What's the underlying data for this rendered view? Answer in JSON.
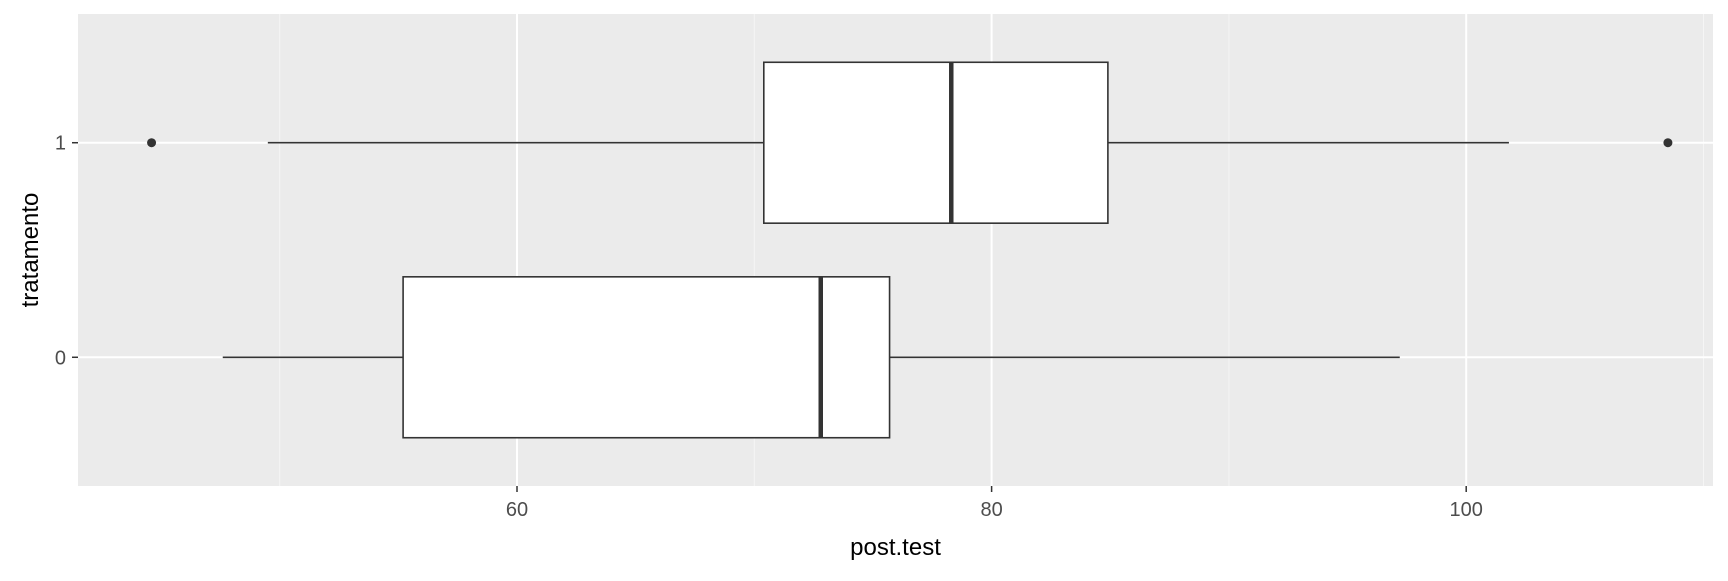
{
  "chart_data": {
    "type": "boxplot",
    "orientation": "horizontal",
    "xlabel": "post.test",
    "ylabel": "tratamento",
    "xlim": [
      41.5,
      110.4
    ],
    "x_ticks": [
      60,
      80,
      100
    ],
    "x_minor_ticks": [
      50,
      70,
      90,
      110
    ],
    "categories": [
      "0",
      "1"
    ],
    "grid": true,
    "legend": "none",
    "boxes": [
      {
        "category": "0",
        "whisker_low": 47.6,
        "q1": 55.2,
        "median": 72.8,
        "q3": 75.7,
        "whisker_high": 97.2,
        "outliers": []
      },
      {
        "category": "1",
        "whisker_low": 49.5,
        "q1": 70.4,
        "median": 78.3,
        "q3": 84.9,
        "whisker_high": 101.8,
        "outliers": [
          44.6,
          108.5
        ]
      }
    ],
    "colors": {
      "panel_background": "#ebebeb",
      "grid_major": "#ffffff",
      "grid_minor": "#f5f5f5",
      "box_fill": "#ffffff",
      "box_stroke": "#333333"
    }
  }
}
